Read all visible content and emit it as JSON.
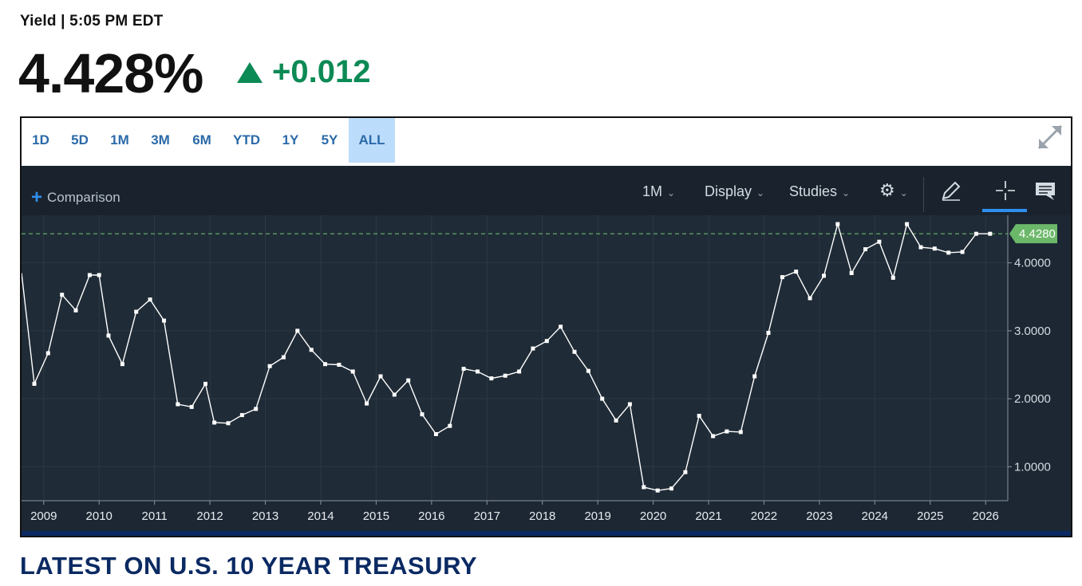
{
  "header": {
    "label": "Yield | 5:05 PM EDT",
    "price": "4.428%",
    "change": "+0.012",
    "change_color": "#0c8a55"
  },
  "ranges": [
    "1D",
    "5D",
    "1M",
    "3M",
    "6M",
    "YTD",
    "1Y",
    "5Y",
    "ALL"
  ],
  "active_range": "ALL",
  "toolbar": {
    "comparison_label": "Comparison",
    "interval_label": "1M",
    "display_label": "Display",
    "studies_label": "Studies",
    "icons": [
      "plus-icon",
      "chevron-down-icon",
      "gear-icon",
      "pencil-icon",
      "crosshair-icon",
      "comment-icon",
      "expand-icon"
    ]
  },
  "footer": {
    "heading": "LATEST ON U.S. 10 YEAR TREASURY"
  },
  "colors": {
    "background": "#1c2733",
    "line": "#ffffff",
    "last_price_badge": "#6cb86a",
    "accent": "#2f8ff0"
  },
  "chart_data": {
    "type": "line",
    "xlabel": "",
    "ylabel": "",
    "x_ticks": [
      "2009",
      "2010",
      "2011",
      "2012",
      "2013",
      "2014",
      "2015",
      "2016",
      "2017",
      "2018",
      "2019",
      "2020",
      "2021",
      "2022",
      "2023",
      "2024",
      "2025",
      "2026"
    ],
    "y_ticks": [
      "1.0000",
      "2.0000",
      "3.0000",
      "4.0000"
    ],
    "ylim": [
      0.5,
      4.7
    ],
    "xlim": [
      2008.6,
      2026.4
    ],
    "last_value_label": "4.4280",
    "last_value": 4.428,
    "grid": true,
    "series": [
      {
        "x": [
          2008.83,
          2009.08,
          2009.33,
          2009.58,
          2009.83,
          2010.0,
          2010.17,
          2010.42,
          2010.67,
          2010.92,
          2011.17,
          2011.42,
          2011.67,
          2011.92,
          2012.08,
          2012.33,
          2012.58,
          2012.83,
          2013.08,
          2013.33,
          2013.58,
          2013.83,
          2014.08,
          2014.33,
          2014.58,
          2014.83,
          2015.08,
          2015.33,
          2015.58,
          2015.83,
          2016.08,
          2016.33,
          2016.58,
          2016.83,
          2017.08,
          2017.33,
          2017.58,
          2017.83,
          2018.08,
          2018.33,
          2018.58,
          2018.83,
          2019.08,
          2019.33,
          2019.58,
          2019.83,
          2020.08,
          2020.33,
          2020.58,
          2020.83,
          2021.08,
          2021.33,
          2021.58,
          2021.83,
          2022.08,
          2022.33,
          2022.58,
          2022.83,
          2023.08,
          2023.33,
          2023.58,
          2023.83,
          2024.08,
          2024.33,
          2024.58,
          2024.83,
          2025.08,
          2025.33,
          2025.58,
          2025.83,
          2026.08
        ],
        "y": [
          2.22,
          2.67,
          3.53,
          3.3,
          3.82,
          3.82,
          2.93,
          2.51,
          3.28,
          3.46,
          3.15,
          1.92,
          1.88,
          2.22,
          1.65,
          1.64,
          1.76,
          1.85,
          2.48,
          2.61,
          3.0,
          2.72,
          2.51,
          2.5,
          2.4,
          1.93,
          2.33,
          2.06,
          2.27,
          1.77,
          1.48,
          1.6,
          2.44,
          2.4,
          2.3,
          2.34,
          2.4,
          2.74,
          2.85,
          3.06,
          2.69,
          2.41,
          2.0,
          1.68,
          1.92,
          0.7,
          0.65,
          0.68,
          0.92,
          1.75,
          1.45,
          1.52,
          1.51,
          2.33,
          2.97,
          3.79,
          3.87,
          3.48,
          3.81,
          4.57,
          3.85,
          4.2,
          4.31,
          3.78,
          4.57,
          4.23,
          4.21,
          4.15,
          4.16,
          4.428,
          4.428
        ]
      }
    ]
  }
}
